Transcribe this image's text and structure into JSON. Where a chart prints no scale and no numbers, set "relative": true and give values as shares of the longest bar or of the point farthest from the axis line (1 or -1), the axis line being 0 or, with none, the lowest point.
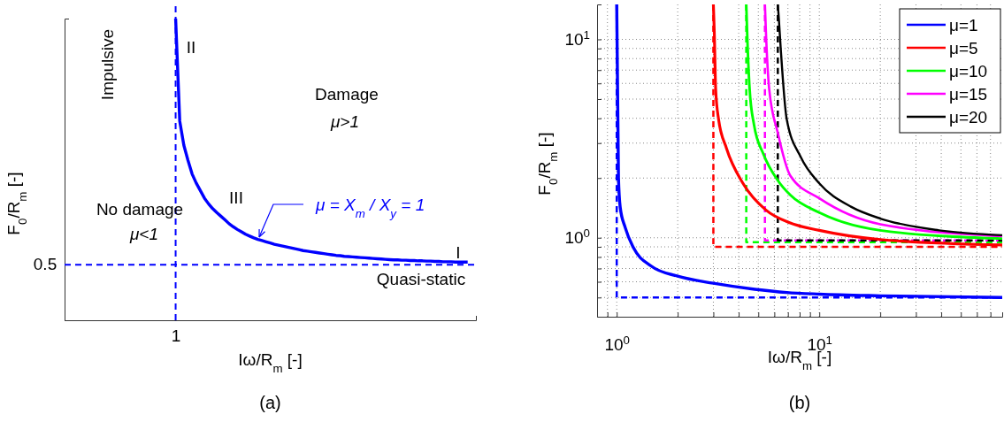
{
  "chart_data": [
    {
      "type": "line",
      "relative": true,
      "title": "(a)",
      "xlabel": "Iω/R$_{m}$  [-]",
      "ylabel": "F$_{0}$/R$_{m}$ [-]",
      "grid": false,
      "legend": false,
      "marker": "none",
      "categories": [
        null,
        null,
        null,
        null,
        null,
        null,
        null,
        null,
        null,
        null,
        null,
        null,
        null,
        null,
        null,
        null,
        null,
        null,
        null,
        null,
        null,
        null,
        null,
        null,
        null,
        null,
        null,
        null,
        null,
        null,
        null,
        null,
        null,
        null,
        null,
        null,
        null,
        null,
        null,
        null,
        null,
        null,
        null,
        null,
        null,
        null,
        null,
        null,
        null,
        null,
        null,
        null,
        null,
        null,
        null,
        null,
        null,
        null,
        null,
        null,
        null,
        null,
        null,
        null,
        null,
        null,
        null,
        null,
        null,
        null,
        null,
        null,
        null,
        null,
        null,
        null,
        null,
        null,
        null,
        null,
        null,
        null,
        null,
        null,
        null,
        null,
        null,
        null,
        null,
        null,
        null,
        null,
        null,
        null,
        null,
        null,
        null,
        null,
        null,
        null,
        null
      ],
      "series": [
        {
          "color": "#0000ff",
          "line_style": "solid",
          "values": [
            null,
            null,
            null,
            null,
            null,
            null,
            null,
            null,
            null,
            null,
            null,
            null,
            null,
            null,
            null,
            null,
            null,
            null,
            null,
            null,
            null,
            null,
            null,
            null,
            null,
            null,
            null,
            1,
            0.66,
            0.58,
            0.53,
            0.485,
            0.455,
            0.43,
            0.405,
            0.386,
            0.37,
            0.357,
            0.345,
            0.333,
            0.32,
            0.31,
            0.301,
            0.293,
            0.285,
            0.279,
            0.273,
            0.268,
            0.264,
            0.26,
            0.256,
            0.252,
            0.249,
            0.246,
            0.243,
            0.24,
            0.237,
            0.234,
            0.231,
            0.229,
            0.227,
            0.225,
            0.223,
            0.221,
            0.219,
            0.217,
            0.215,
            0.214,
            0.212,
            0.211,
            0.21,
            0.209,
            0.208,
            0.207,
            0.206,
            0.205,
            0.204,
            0.203,
            0.202,
            0.201,
            0.2,
            0.2,
            0.199,
            0.199,
            0.198,
            0.198,
            0.197,
            0.197,
            0.196,
            0.196,
            0.195,
            0.195,
            0.194,
            0.194,
            0.194,
            0.193,
            0.193,
            0.193,
            0.193,
            null,
            null
          ]
        }
      ],
      "ref_lines": [
        {
          "axis": "y",
          "value": 0.184,
          "color": "#0000ff",
          "line_style": "dashed"
        }
      ],
      "annotations": [
        "Impulsive",
        "II",
        "Damage",
        "μ>1",
        "III",
        "No damage",
        "μ<1",
        "μ = X$_{m}$ / X$_{y}$ = 1",
        "I",
        "Quasi-static",
        "1",
        "0.5"
      ]
    },
    {
      "type": "line",
      "title": "(b)",
      "xlabel": "Iω/R$_{m}$  [-]",
      "ylabel": "F$_{0}$/R$_{m}$ [-]",
      "log": "xy",
      "xlim": [
        0.8,
        80
      ],
      "ylim": [
        0.4,
        15
      ],
      "xticks": [
        {
          "value": 0.9,
          "label": null
        },
        {
          "value": 1,
          "label": "10$^{0}$"
        },
        {
          "value": 2,
          "label": null
        },
        {
          "value": 3,
          "label": null
        },
        {
          "value": 4,
          "label": null
        },
        {
          "value": 5,
          "label": null
        },
        {
          "value": 6,
          "label": null
        },
        {
          "value": 7,
          "label": null
        },
        {
          "value": 8,
          "label": null
        },
        {
          "value": 9,
          "label": null
        },
        {
          "value": 10,
          "label": "10$^{1}$"
        },
        {
          "value": 20,
          "label": null
        },
        {
          "value": 30,
          "label": null
        },
        {
          "value": 40,
          "label": null
        },
        {
          "value": 50,
          "label": null
        },
        {
          "value": 60,
          "label": null
        },
        {
          "value": 70,
          "label": null
        }
      ],
      "yticks": [
        {
          "value": 0.5,
          "label": null
        },
        {
          "value": 0.6,
          "label": null
        },
        {
          "value": 0.7,
          "label": null
        },
        {
          "value": 0.8,
          "label": null
        },
        {
          "value": 0.9,
          "label": null
        },
        {
          "value": 1,
          "label": "10$^{0}$"
        },
        {
          "value": 2,
          "label": null
        },
        {
          "value": 3,
          "label": null
        },
        {
          "value": 4,
          "label": null
        },
        {
          "value": 5,
          "label": null
        },
        {
          "value": 6,
          "label": null
        },
        {
          "value": 7,
          "label": null
        },
        {
          "value": 8,
          "label": null
        },
        {
          "value": 9,
          "label": null
        },
        {
          "value": 10,
          "label": "10$^{1}$"
        }
      ],
      "grid": true,
      "legend": "top right",
      "marker": "none",
      "series": [
        {
          "name": "μ=1",
          "color": "#0000ff",
          "line_style": "solid",
          "x": [
            1,
            1.02,
            1.04,
            1.1,
            1.21,
            1.48,
            2,
            3,
            4.8,
            6.9,
            10,
            20,
            80
          ],
          "values": [
            15,
            2.01,
            1.43,
            1.13,
            0.89,
            0.72,
            0.64,
            0.59,
            0.55,
            0.53,
            0.52,
            0.51,
            0.5
          ]
        },
        {
          "name": "μ=5",
          "color": "#ff0000",
          "line_style": "solid",
          "x": [
            3,
            3.03,
            3.08,
            3.18,
            3.48,
            4.2,
            5.45,
            7.14,
            10,
            20,
            80
          ],
          "values": [
            15,
            11.1,
            5.6,
            3.98,
            2.83,
            1.88,
            1.38,
            1.19,
            1.09,
            0.98,
            0.92
          ]
        },
        {
          "name": "μ=10",
          "color": "#00ff00",
          "line_style": "solid",
          "x": [
            4.36,
            4.4,
            4.53,
            4.76,
            5.3,
            6.23,
            7.2,
            10,
            20,
            80
          ],
          "values": [
            15,
            11.1,
            5.6,
            3.72,
            2.64,
            1.95,
            1.64,
            1.34,
            1.09,
            0.99
          ]
        },
        {
          "name": "μ=15",
          "color": "#ff00ff",
          "line_style": "solid",
          "x": [
            5.39,
            5.45,
            5.66,
            6.23,
            7.2,
            10,
            20,
            80
          ],
          "values": [
            15,
            11,
            5.6,
            3.4,
            2.05,
            1.58,
            1.17,
            1.02
          ]
        },
        {
          "name": "μ=20",
          "color": "#000000",
          "line_style": "solid",
          "x": [
            6.24,
            6.3,
            6.45,
            6.9,
            8.1,
            10,
            14.4,
            20,
            39,
            80
          ],
          "values": [
            15,
            13.1,
            9,
            3.98,
            2.55,
            1.88,
            1.43,
            1.25,
            1.09,
            1.03
          ]
        },
        {
          "color": "#0000ff",
          "line_style": "dashed",
          "x": [
            1,
            1,
            80
          ],
          "values": [
            15,
            0.5,
            0.5
          ]
        },
        {
          "color": "#ff0000",
          "line_style": "dashed",
          "x": [
            3,
            3,
            80
          ],
          "values": [
            15,
            0.9,
            0.9
          ]
        },
        {
          "color": "#00ff00",
          "line_style": "dashed",
          "x": [
            4.36,
            4.36,
            80
          ],
          "values": [
            15,
            0.95,
            0.95
          ]
        },
        {
          "color": "#ff00ff",
          "line_style": "dashed",
          "x": [
            5.39,
            5.39,
            80
          ],
          "values": [
            15,
            0.97,
            0.97
          ]
        },
        {
          "color": "#000000",
          "line_style": "dashed",
          "x": [
            6.24,
            6.24,
            80
          ],
          "values": [
            15,
            0.97,
            0.97
          ]
        }
      ]
    }
  ]
}
